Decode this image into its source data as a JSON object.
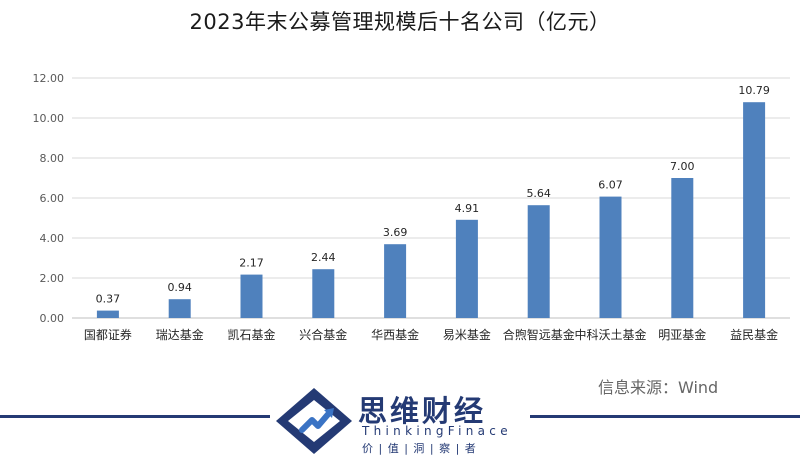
{
  "chart_data": {
    "type": "bar",
    "title": "2023年末公募管理规模后十名公司（亿元）",
    "categories": [
      "国都证券",
      "瑞达基金",
      "凯石基金",
      "兴合基金",
      "华西基金",
      "易米基金",
      "合煦智远基金",
      "中科沃土基金",
      "明亚基金",
      "益民基金"
    ],
    "values": [
      0.37,
      0.94,
      2.17,
      2.44,
      3.69,
      4.91,
      5.64,
      6.07,
      7.0,
      10.79
    ],
    "value_labels": [
      "0.37",
      "0.94",
      "2.17",
      "2.44",
      "3.69",
      "4.91",
      "5.64",
      "6.07",
      "7.00",
      "10.79"
    ],
    "ylim": [
      0,
      12
    ],
    "yticks": [
      "0.00",
      "2.00",
      "4.00",
      "6.00",
      "8.00",
      "10.00",
      "12.00"
    ],
    "xlabel": "",
    "ylabel": "",
    "grid": true,
    "legend": "none",
    "bar_color": "#4f81bd"
  },
  "source": "信息来源：Wind",
  "brand": {
    "name": "思维财经",
    "english": "ThinkingFinace",
    "slogan": "价 | 值 | 洞 | 察 | 者",
    "colors": {
      "navy": "#243a74",
      "blue": "#3a73c4"
    }
  }
}
